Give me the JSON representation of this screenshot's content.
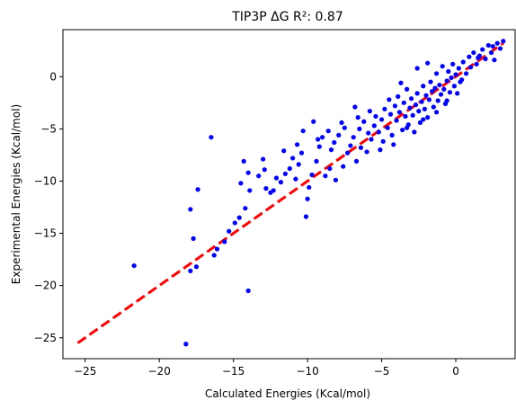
{
  "chart_data": {
    "type": "scatter",
    "title": "TIP3P ΔG R²: 0.87",
    "xlabel": "Calculated Energies (Kcal/mol)",
    "ylabel": "Experimental Energies (Kcal/mol)",
    "xlim": [
      -26.5,
      4.0
    ],
    "ylim": [
      -27.0,
      4.5
    ],
    "xticks": [
      -25,
      -20,
      -15,
      -10,
      -5,
      0
    ],
    "yticks": [
      -25,
      -20,
      -15,
      -10,
      -5,
      0
    ],
    "grid": false,
    "colors": {
      "points": "#0000ff",
      "fit_line": "#ff0000"
    },
    "fit_line": {
      "style": "dashed",
      "x": [
        -25.5,
        3.2
      ],
      "y": [
        -25.5,
        3.2
      ]
    },
    "series": [
      {
        "points": [
          [
            -18.2,
            -25.6
          ],
          [
            -21.7,
            -18.1
          ],
          [
            -17.9,
            -18.6
          ],
          [
            -17.5,
            -18.2
          ],
          [
            -17.7,
            -15.5
          ],
          [
            -17.9,
            -12.7
          ],
          [
            -17.4,
            -10.8
          ],
          [
            -16.5,
            -5.8
          ],
          [
            -16.3,
            -17.1
          ],
          [
            -16.1,
            -16.5
          ],
          [
            -15.6,
            -15.8
          ],
          [
            -15.3,
            -14.8
          ],
          [
            -14.9,
            -14.0
          ],
          [
            -14.6,
            -13.5
          ],
          [
            -14.2,
            -12.6
          ],
          [
            -14.0,
            -20.5
          ],
          [
            -14.5,
            -10.2
          ],
          [
            -14.0,
            -9.2
          ],
          [
            -14.3,
            -8.1
          ],
          [
            -13.9,
            -10.9
          ],
          [
            -13.3,
            -9.5
          ],
          [
            -12.8,
            -10.7
          ],
          [
            -12.5,
            -11.1
          ],
          [
            -12.1,
            -9.7
          ],
          [
            -12.9,
            -8.9
          ],
          [
            -12.3,
            -10.9
          ],
          [
            -11.8,
            -10.1
          ],
          [
            -11.5,
            -9.3
          ],
          [
            -11.2,
            -8.8
          ],
          [
            -11.0,
            -7.8
          ],
          [
            -10.8,
            -9.8
          ],
          [
            -10.6,
            -8.4
          ],
          [
            -10.4,
            -7.3
          ],
          [
            -10.7,
            -6.5
          ],
          [
            -10.1,
            -13.4
          ],
          [
            -10.0,
            -11.7
          ],
          [
            -9.9,
            -10.6
          ],
          [
            -9.7,
            -9.4
          ],
          [
            -9.4,
            -8.1
          ],
          [
            -9.6,
            -4.3
          ],
          [
            -9.2,
            -6.7
          ],
          [
            -9.0,
            -5.8
          ],
          [
            -8.8,
            -9.5
          ],
          [
            -8.5,
            -8.8
          ],
          [
            -8.4,
            -7.0
          ],
          [
            -8.2,
            -6.3
          ],
          [
            -8.1,
            -9.9
          ],
          [
            -7.9,
            -5.6
          ],
          [
            -7.6,
            -8.6
          ],
          [
            -7.5,
            -4.9
          ],
          [
            -7.3,
            -7.3
          ],
          [
            -7.1,
            -6.6
          ],
          [
            -6.9,
            -5.8
          ],
          [
            -6.7,
            -8.1
          ],
          [
            -6.5,
            -5.0
          ],
          [
            -6.4,
            -6.8
          ],
          [
            -6.2,
            -4.3
          ],
          [
            -6.0,
            -7.2
          ],
          [
            -5.9,
            -5.4
          ],
          [
            -5.7,
            -6.0
          ],
          [
            -5.5,
            -4.7
          ],
          [
            -5.4,
            -3.8
          ],
          [
            -5.2,
            -5.3
          ],
          [
            -5.0,
            -4.1
          ],
          [
            -4.9,
            -6.2
          ],
          [
            -4.8,
            -3.1
          ],
          [
            -4.6,
            -4.9
          ],
          [
            -4.4,
            -3.6
          ],
          [
            -4.3,
            -5.6
          ],
          [
            -4.1,
            -2.8
          ],
          [
            -4.0,
            -4.2
          ],
          [
            -3.9,
            -1.9
          ],
          [
            -3.8,
            -3.4
          ],
          [
            -3.6,
            -5.1
          ],
          [
            -3.5,
            -2.5
          ],
          [
            -3.4,
            -3.8
          ],
          [
            -3.3,
            -1.2
          ],
          [
            -3.2,
            -4.6
          ],
          [
            -3.1,
            -3.0
          ],
          [
            -3.0,
            -2.1
          ],
          [
            -2.9,
            -3.7
          ],
          [
            -2.8,
            -5.3
          ],
          [
            -2.7,
            -2.7
          ],
          [
            -2.6,
            -1.6
          ],
          [
            -2.5,
            -3.3
          ],
          [
            -2.4,
            -4.4
          ],
          [
            -2.3,
            -2.4
          ],
          [
            -2.2,
            -0.9
          ],
          [
            -2.1,
            -3.1
          ],
          [
            -2.0,
            -1.8
          ],
          [
            -1.9,
            -3.9
          ],
          [
            -1.8,
            -2.2
          ],
          [
            -1.7,
            -0.5
          ],
          [
            -1.6,
            -1.4
          ],
          [
            -1.5,
            -2.9
          ],
          [
            -1.4,
            -1.1
          ],
          [
            -1.3,
            0.3
          ],
          [
            -1.2,
            -2.3
          ],
          [
            -1.1,
            -0.8
          ],
          [
            -1.0,
            -1.7
          ],
          [
            -0.9,
            1.0
          ],
          [
            -0.8,
            -1.2
          ],
          [
            -0.7,
            -2.6
          ],
          [
            -0.6,
            -0.4
          ],
          [
            -0.5,
            0.5
          ],
          [
            -0.4,
            -1.5
          ],
          [
            -0.3,
            -0.1
          ],
          [
            -0.2,
            1.2
          ],
          [
            -0.1,
            -0.9
          ],
          [
            0.0,
            0.2
          ],
          [
            0.1,
            -1.6
          ],
          [
            0.2,
            0.8
          ],
          [
            0.3,
            -0.5
          ],
          [
            0.5,
            1.4
          ],
          [
            0.7,
            0.3
          ],
          [
            0.9,
            1.9
          ],
          [
            1.0,
            0.9
          ],
          [
            1.2,
            2.3
          ],
          [
            1.4,
            1.2
          ],
          [
            1.6,
            2.0
          ],
          [
            1.8,
            2.6
          ],
          [
            2.0,
            1.7
          ],
          [
            2.2,
            3.0
          ],
          [
            2.4,
            2.3
          ],
          [
            2.6,
            1.6
          ],
          [
            2.8,
            3.2
          ],
          [
            3.0,
            2.7
          ],
          [
            3.2,
            3.4
          ],
          [
            2.5,
            2.9
          ],
          [
            1.5,
            1.8
          ],
          [
            -5.8,
            -3.3
          ],
          [
            -6.6,
            -3.9
          ],
          [
            -7.7,
            -4.4
          ],
          [
            -8.6,
            -5.2
          ],
          [
            -5.1,
            -7.0
          ],
          [
            -4.2,
            -6.5
          ],
          [
            -3.7,
            -0.6
          ],
          [
            -2.6,
            0.8
          ],
          [
            -1.9,
            1.3
          ],
          [
            -4.5,
            -2.2
          ],
          [
            -6.8,
            -2.9
          ],
          [
            -9.3,
            -6.0
          ],
          [
            -10.3,
            -5.2
          ],
          [
            -11.6,
            -7.1
          ],
          [
            -13.0,
            -7.9
          ],
          [
            -3.3,
            -4.9
          ],
          [
            -2.2,
            -4.1
          ],
          [
            -1.3,
            -3.4
          ],
          [
            -0.6,
            -2.3
          ],
          [
            0.4,
            -0.3
          ]
        ]
      }
    ]
  }
}
